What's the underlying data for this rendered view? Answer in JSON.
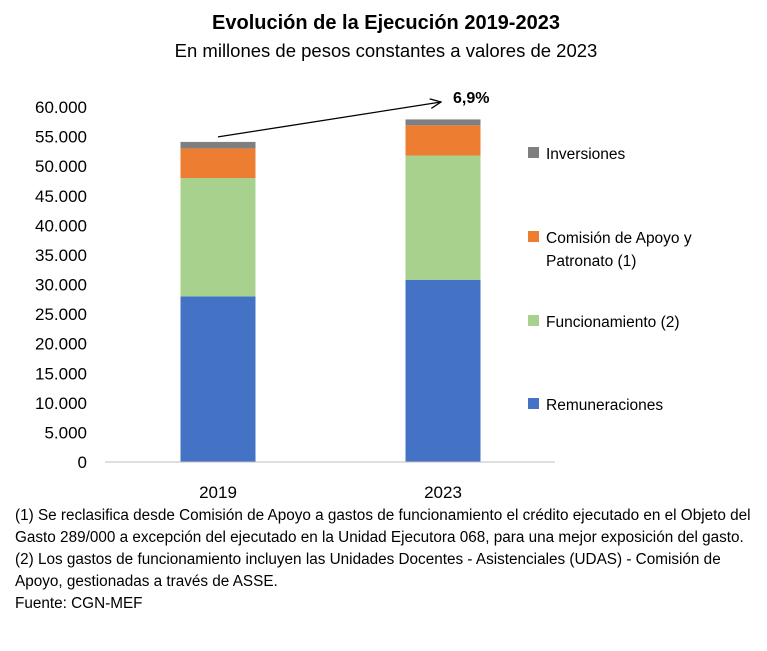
{
  "chart_data": {
    "type": "bar",
    "stacked": true,
    "title": "Evolución de la Ejecución 2019-2023",
    "subtitle": "En millones de pesos constantes a valores de 2023",
    "categories": [
      "2019",
      "2023"
    ],
    "series": [
      {
        "name": "Remuneraciones",
        "color": "#4472C4",
        "values": [
          28000,
          30800
        ]
      },
      {
        "name": "Funcionamiento   (2)",
        "color": "#A9D18E",
        "values": [
          20000,
          21000
        ]
      },
      {
        "name": "Comisión de Apoyo y Patronato  (1)",
        "legend_lines": [
          "Comisión de Apoyo y",
          "Patronato  (1)"
        ],
        "color": "#ED7D31",
        "values": [
          5000,
          5100
        ]
      },
      {
        "name": "Inversiones",
        "color": "#7F7F7F",
        "values": [
          1100,
          1000
        ]
      }
    ],
    "ylim": [
      0,
      60000
    ],
    "ytick_step": 5000,
    "ytick_labels": [
      "0",
      "5.000",
      "10.000",
      "15.000",
      "20.000",
      "25.000",
      "30.000",
      "35.000",
      "40.000",
      "45.000",
      "50.000",
      "55.000",
      "60.000"
    ],
    "legend_position": "right",
    "annotation": {
      "text": "6,9%",
      "type": "arrow",
      "from_category": "2019",
      "to_category": "2023"
    }
  },
  "notes": {
    "note1": "(1) Se reclasifica desde Comisión de Apoyo a gastos de funcionamiento el crédito ejecutado en el Objeto del Gasto 289/000 a excepción del ejecutado en la Unidad Ejecutora 068, para una mejor exposición del gasto.",
    "note2": "(2) Los gastos de funcionamiento incluyen las Unidades Docentes - Asistenciales (UDAS) - Comisión de Apoyo, gestionadas a través de ASSE.",
    "source": "Fuente: CGN-MEF"
  }
}
